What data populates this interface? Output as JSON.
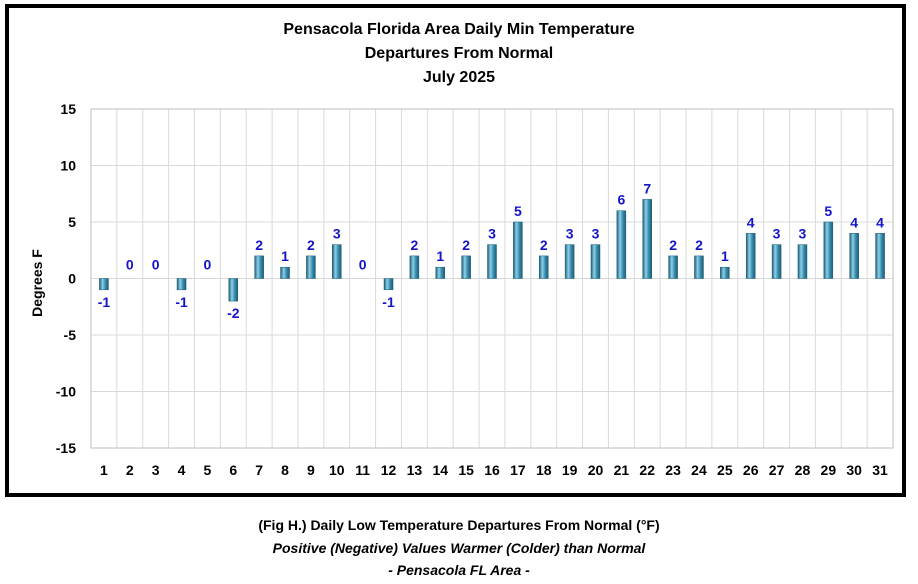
{
  "chart_data": {
    "type": "bar",
    "title": [
      "Pensacola Florida Area Daily Min Temperature",
      "Departures From Normal",
      "July 2025"
    ],
    "ylabel": "Degrees F",
    "xlabel": "",
    "ylim": [
      -15,
      15
    ],
    "yticks": [
      "15",
      "10",
      "5",
      "0",
      "-5",
      "-10",
      "-15"
    ],
    "categories": [
      "1",
      "2",
      "3",
      "4",
      "5",
      "6",
      "7",
      "8",
      "9",
      "10",
      "11",
      "12",
      "13",
      "14",
      "15",
      "16",
      "17",
      "18",
      "19",
      "20",
      "21",
      "22",
      "23",
      "24",
      "25",
      "26",
      "27",
      "28",
      "29",
      "30",
      "31"
    ],
    "values": [
      -1,
      0,
      0,
      -1,
      0,
      -2,
      2,
      1,
      2,
      3,
      0,
      -1,
      2,
      1,
      2,
      3,
      5,
      2,
      3,
      3,
      6,
      7,
      2,
      2,
      1,
      4,
      3,
      3,
      5,
      4,
      4
    ],
    "grid": true,
    "colors": {
      "bar": "#3a8fb0",
      "bar_light": "#8fd0e6",
      "bar_dark": "#1c5c78",
      "label": "#1414c8",
      "grid": "#d9d9d9"
    }
  },
  "caption": {
    "line1": "(Fig H.) Daily Low Temperature Departures From Normal (°F)",
    "line2": "Positive (Negative) Values Warmer (Colder) than Normal",
    "line3": "- Pensacola FL Area -"
  }
}
